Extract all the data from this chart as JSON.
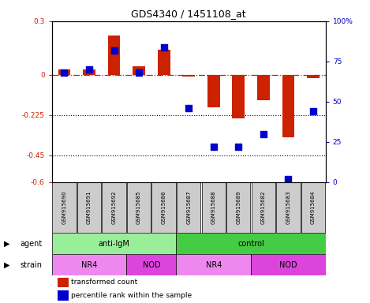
{
  "title": "GDS4340 / 1451108_at",
  "samples": [
    "GSM915690",
    "GSM915691",
    "GSM915692",
    "GSM915685",
    "GSM915686",
    "GSM915687",
    "GSM915688",
    "GSM915689",
    "GSM915682",
    "GSM915683",
    "GSM915684"
  ],
  "red_values": [
    0.03,
    0.03,
    0.22,
    0.05,
    0.14,
    -0.01,
    -0.18,
    -0.245,
    -0.14,
    -0.35,
    -0.02
  ],
  "blue_values": [
    68,
    70,
    82,
    68,
    84,
    46,
    22,
    22,
    30,
    2,
    44
  ],
  "ylim_left": [
    -0.6,
    0.3
  ],
  "ylim_right": [
    0,
    100
  ],
  "yticks_left": [
    0.3,
    0,
    -0.225,
    -0.45,
    -0.6
  ],
  "yticks_right": [
    100,
    75,
    50,
    25,
    0
  ],
  "hlines": [
    -0.225,
    -0.45
  ],
  "dashed_line_y": 0,
  "bar_width": 0.5,
  "scatter_size": 28,
  "red_color": "#cc2200",
  "blue_color": "#0000cc",
  "agent_groups": [
    {
      "label": "anti-IgM",
      "start": 0,
      "end": 5,
      "color": "#99ee99"
    },
    {
      "label": "control",
      "start": 5,
      "end": 11,
      "color": "#44cc44"
    }
  ],
  "strain_groups": [
    {
      "label": "NR4",
      "start": 0,
      "end": 3,
      "color": "#ee88ee"
    },
    {
      "label": "NOD",
      "start": 3,
      "end": 5,
      "color": "#dd44dd"
    },
    {
      "label": "NR4",
      "start": 5,
      "end": 8,
      "color": "#ee88ee"
    },
    {
      "label": "NOD",
      "start": 8,
      "end": 11,
      "color": "#dd44dd"
    }
  ],
  "sample_bg_color": "#cccccc",
  "legend_red_label": "transformed count",
  "legend_blue_label": "percentile rank within the sample",
  "label_agent": "agent",
  "label_strain": "strain"
}
